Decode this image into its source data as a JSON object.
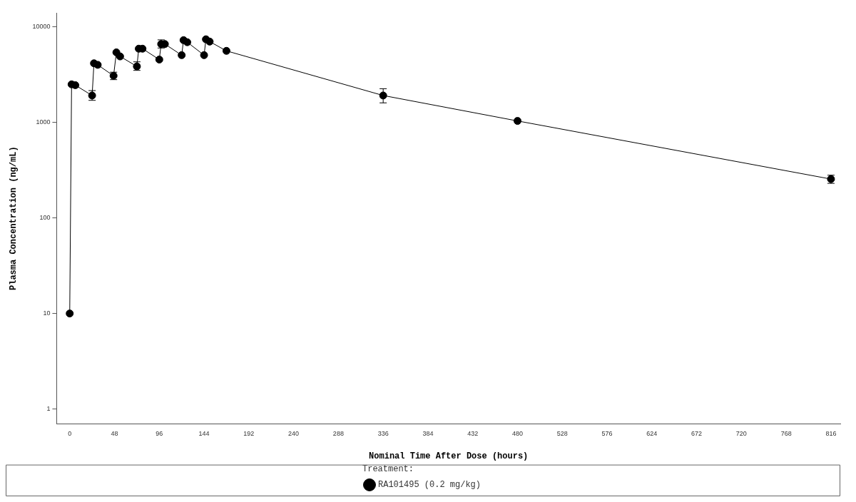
{
  "chart_data": {
    "type": "line",
    "xlabel": "Nominal Time After Dose (hours)",
    "ylabel": "Plasma Concentration (ng/mL)",
    "legend_title": "Treatment:",
    "legend": "bottom",
    "log": "y",
    "grid": false,
    "marker": "circle",
    "line_style": "solid",
    "x": [
      0,
      2,
      6,
      24,
      26,
      30,
      47,
      50,
      54,
      72,
      74,
      78,
      96,
      98,
      102,
      120,
      122,
      126,
      144,
      146,
      150,
      168,
      336,
      480,
      816
    ],
    "series": [
      {
        "name": "RA101495 (0.2 mg/kg)",
        "color": "#000000",
        "values": [
          10,
          2500,
          2450,
          1910,
          4150,
          4000,
          3070,
          5400,
          4900,
          3850,
          5900,
          5900,
          4540,
          6600,
          6600,
          5050,
          7250,
          6900,
          5050,
          7400,
          7000,
          5600,
          1910,
          1035,
          255
        ],
        "errors": [
          null,
          null,
          null,
          [
            1700,
            2150
          ],
          null,
          null,
          [
            2800,
            3350
          ],
          null,
          null,
          [
            3500,
            4300
          ],
          null,
          null,
          null,
          [
            6000,
            7300
          ],
          null,
          null,
          null,
          null,
          null,
          null,
          null,
          null,
          [
            1600,
            2250
          ],
          null,
          [
            230,
            280
          ]
        ]
      }
    ],
    "xlim": [
      -14,
      826
    ],
    "xticks": [
      0,
      48,
      96,
      144,
      192,
      240,
      288,
      336,
      384,
      432,
      480,
      528,
      576,
      624,
      672,
      720,
      768,
      816
    ],
    "ylim": [
      0.7,
      14000
    ],
    "yticks": [
      1,
      10,
      100,
      1000,
      10000
    ]
  }
}
